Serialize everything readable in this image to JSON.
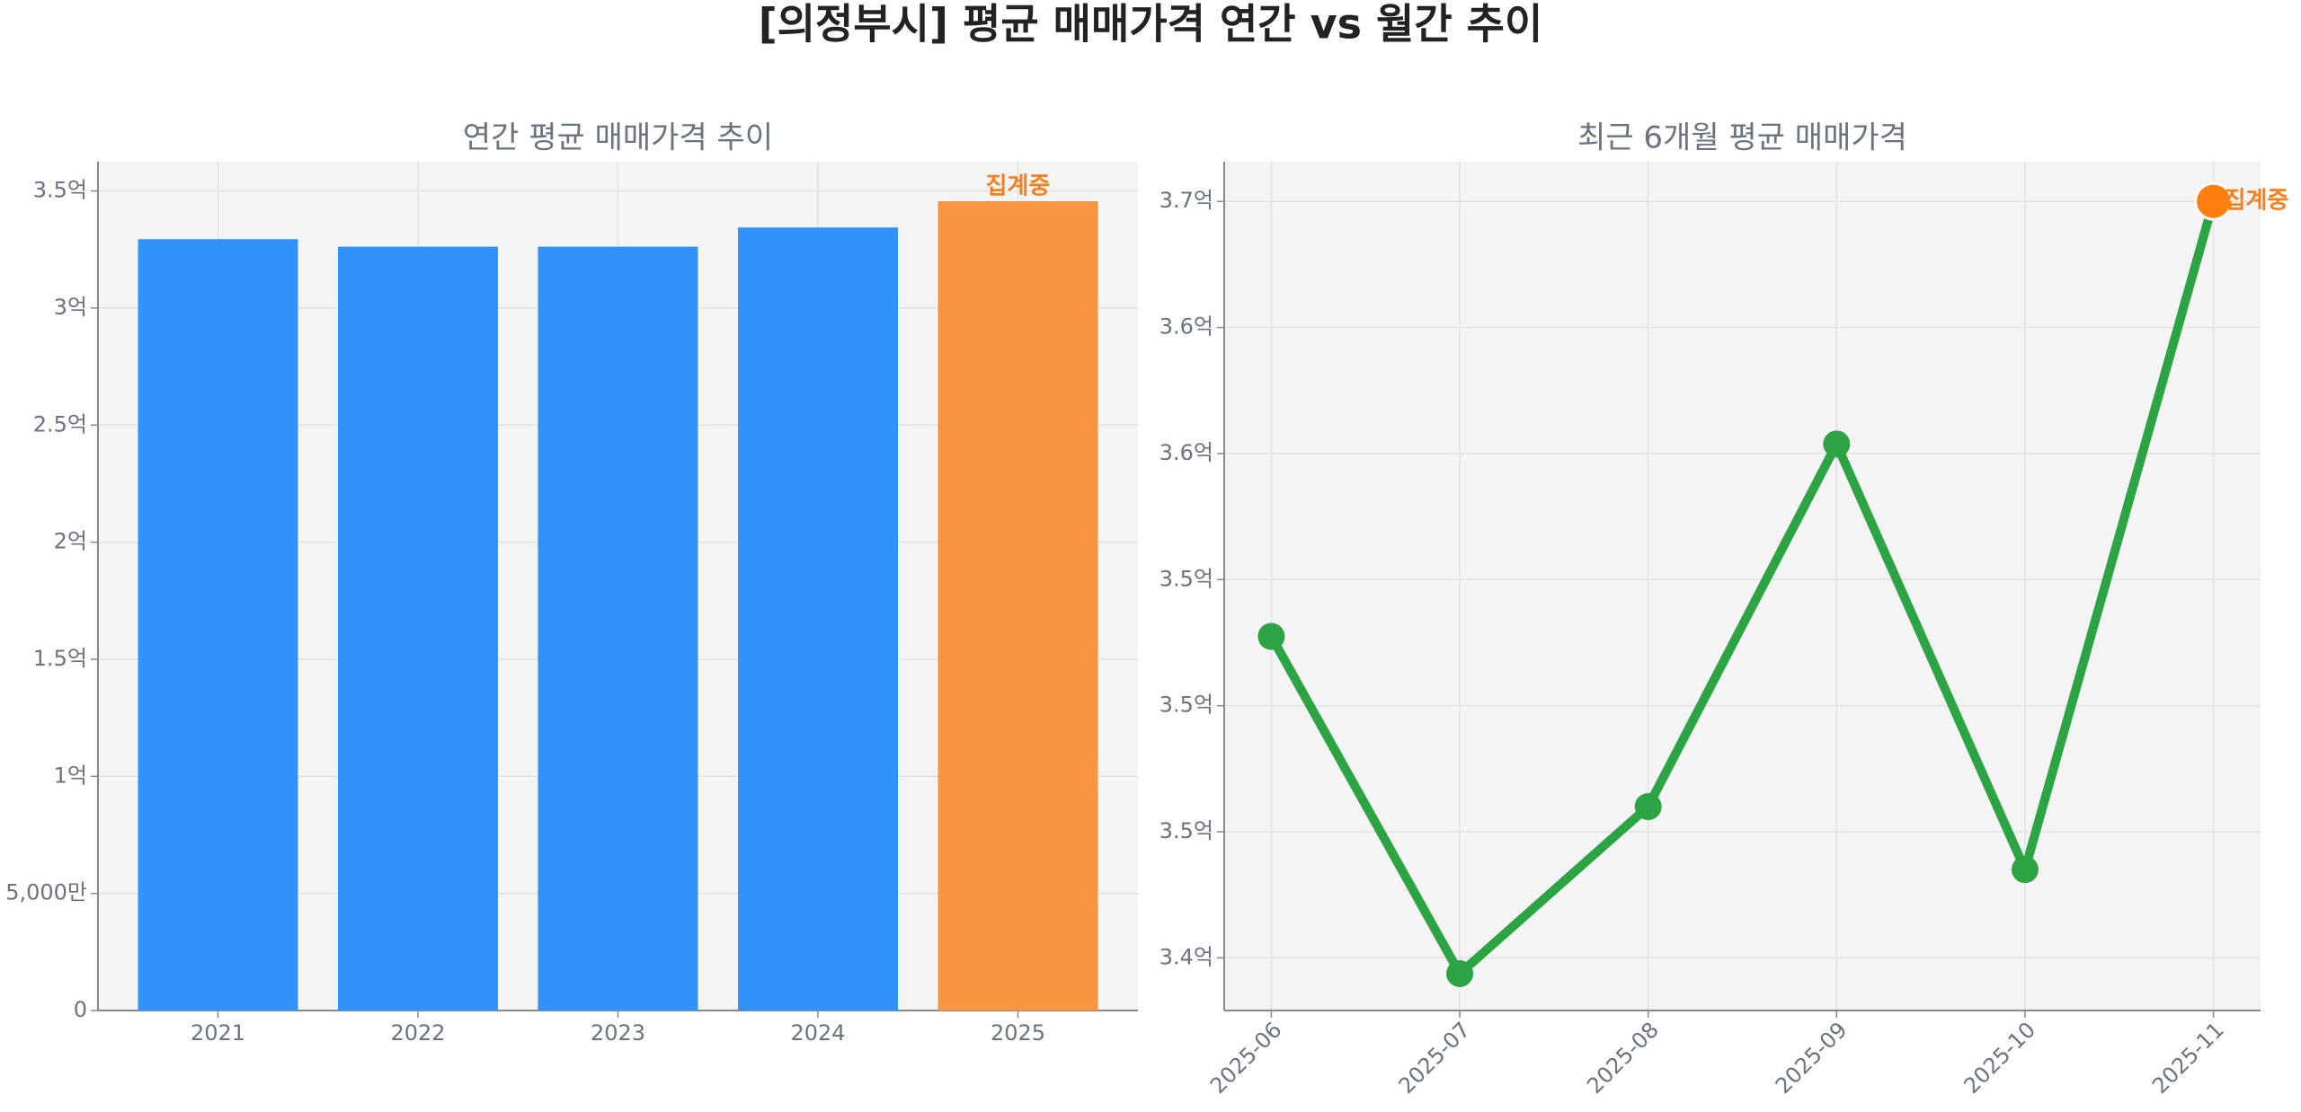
{
  "title": "[의정부시] 평균 매매가격 연간 vs 월간 추이",
  "chart_data": [
    {
      "type": "bar",
      "title": "연간 평균 매매가격 추이",
      "categories": [
        "2021",
        "2022",
        "2023",
        "2024",
        "2025"
      ],
      "values": [
        329400000,
        326200000,
        326200000,
        334400000,
        345600000
      ],
      "colors": [
        "#3192fc",
        "#3192fc",
        "#3192fc",
        "#3192fc",
        "#f99540"
      ],
      "annotation": "집계중",
      "annotation_color": "#f5801f",
      "ylim": [
        0,
        362500000
      ],
      "yticks": [
        0,
        {
          "value": 50000000,
          "label": "5,000만"
        },
        {
          "value": 100000000,
          "label": "1억"
        },
        {
          "value": 150000000,
          "label": "1.5억"
        },
        {
          "value": 200000000,
          "label": "2억"
        },
        {
          "value": 250000000,
          "label": "2.5억"
        },
        {
          "value": 300000000,
          "label": "3억"
        },
        {
          "value": 350000000,
          "label": "3.5억"
        }
      ],
      "grid": true
    },
    {
      "type": "line",
      "title": "최근 6개월 평균 매매가격",
      "x": [
        "2025-06",
        "2025-07",
        "2025-08",
        "2025-09",
        "2025-10",
        "2025-11"
      ],
      "values": [
        352200000,
        341500000,
        346800000,
        358300000,
        344800000,
        366000000
      ],
      "color": "#2ca444",
      "highlight_color": "#ff7f0e",
      "annotation": "집계중",
      "annotation_color": "#f5801f",
      "ylim": [
        340330000,
        367260000
      ],
      "yticks": [
        {
          "value": 342000000,
          "label": "3.4억"
        },
        {
          "value": 346000000,
          "label": "3.5억"
        },
        {
          "value": 350000000,
          "label": "3.5억"
        },
        {
          "value": 354000000,
          "label": "3.5억"
        },
        {
          "value": 358000000,
          "label": "3.6억"
        },
        {
          "value": 362000000,
          "label": "3.6억"
        },
        {
          "value": 366000000,
          "label": "3.7억"
        }
      ],
      "grid": true
    }
  ]
}
